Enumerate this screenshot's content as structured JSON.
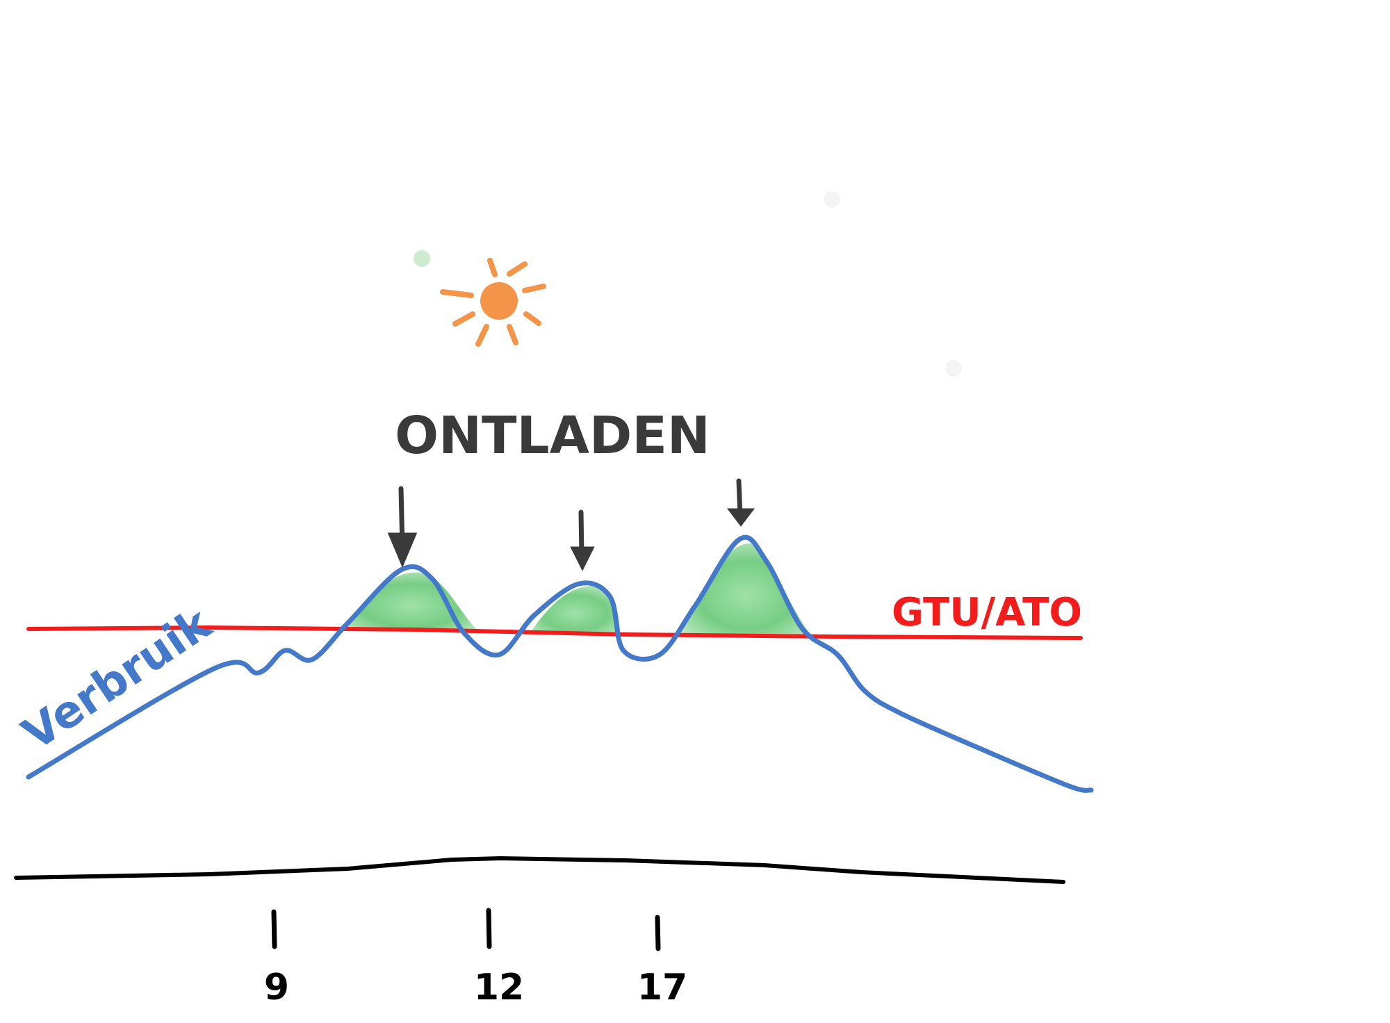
{
  "title": "ONTLADEN",
  "threshold_label": "GTU/ATO",
  "curve_label": "Verbruik",
  "axis_ticks": [
    "9",
    "12",
    "17"
  ]
}
